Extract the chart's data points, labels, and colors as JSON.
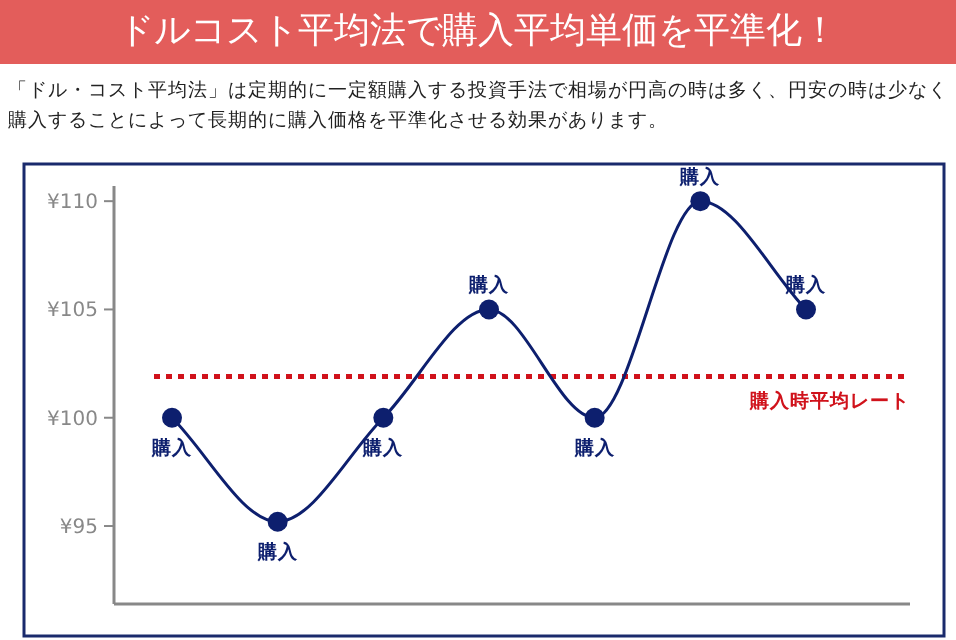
{
  "chart_data": {
    "type": "line",
    "title": "ドルコスト平均法で購入平均単価を平準化！",
    "subtitle": "「ドル・コスト平均法」は定期的に一定額購入する投資手法で相場が円高の時は多く、円安の時は少なく購入することによって長期的に購入価格を平準化させる効果があります。",
    "categories": [
      null,
      null,
      null,
      null,
      null,
      null,
      null
    ],
    "series": [
      {
        "color": "#0d1f6e",
        "values": [
          100,
          95.2,
          100,
          105,
          100,
          110,
          105
        ],
        "value_labels": [
          "購入",
          "購入",
          "購入",
          "購入",
          "購入",
          "購入",
          "購入"
        ]
      }
    ],
    "ylim": [
      91.4,
      110.7
    ],
    "yticks": [
      {
        "value": 95,
        "label": "¥95"
      },
      {
        "value": 100,
        "label": "¥100"
      },
      {
        "value": 105,
        "label": "¥105"
      },
      {
        "value": 110,
        "label": "¥110"
      }
    ],
    "ref_lines": [
      {
        "axis": "y",
        "value": 101.9,
        "label": "購入時平均レート",
        "color": "#d0121b",
        "line_style": "dotted"
      }
    ],
    "marker": "circle",
    "line_style": "solid",
    "grid": false
  }
}
